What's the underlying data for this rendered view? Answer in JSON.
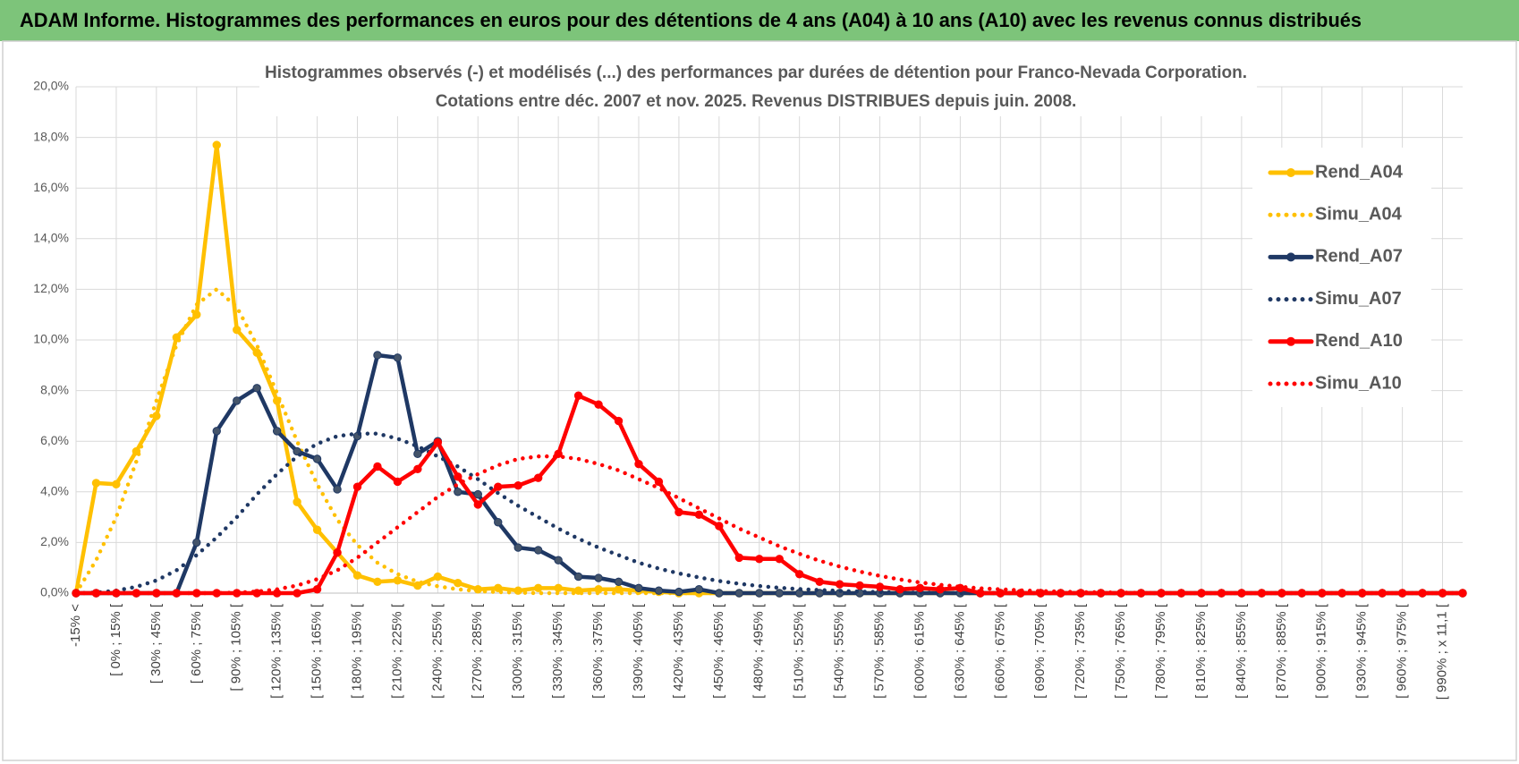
{
  "header": {
    "title": "ADAM Informe. Histogrammes des performances en euros pour des détentions de 4 ans (A04) à 10 ans (A10) avec les revenus connus distribués"
  },
  "chart_data": {
    "type": "line",
    "title": "Histogrammes observés (-) et modélisés (...) des performances par durées de détention pour Franco-Nevada Corporation.",
    "subtitle": "Cotations entre déc. 2007 et nov. 2025.  Revenus DISTRIBUES depuis juin. 2008.",
    "categories": [
      "-15% <",
      null,
      "[ 0% ; 15% [",
      null,
      "[ 30% ; 45% [",
      null,
      "[ 60% ; 75% [",
      null,
      "[ 90% ; 105% [",
      null,
      "[ 120% ; 135% [",
      null,
      "[ 150% ; 165% [",
      null,
      "[ 180% ; 195% [",
      null,
      "[ 210% ; 225% [",
      null,
      "[ 240% ; 255% [",
      null,
      "[ 270% ; 285% [",
      null,
      "[ 300% ; 315% [",
      null,
      "[ 330% ; 345% [",
      null,
      "[ 360% ; 375% [",
      null,
      "[ 390% ; 405% [",
      null,
      "[ 420% ; 435% [",
      null,
      "[ 450% ; 465% [",
      null,
      "[ 480% ; 495% [",
      null,
      "[ 510% ; 525% [",
      null,
      "[ 540% ; 555% [",
      null,
      "[ 570% ; 585% [",
      null,
      "[ 600% ; 615% [",
      null,
      "[ 630% ; 645% [",
      null,
      "[ 660% ; 675% [",
      null,
      "[ 690% ; 705% [",
      null,
      "[ 720% ; 735% [",
      null,
      "[ 750% ; 765% [",
      null,
      "[ 780% ; 795% [",
      null,
      "[ 810% ; 825% [",
      null,
      "[ 840% ; 855% [",
      null,
      "[ 870% ; 885% [",
      null,
      "[ 900% ; 915% [",
      null,
      "[ 930% ; 945% [",
      null,
      "[ 960% ; 975% [",
      null,
      "[ 990% ; x 11,1 [",
      null
    ],
    "series": [
      {
        "name": "Rend_A04",
        "color": "#FFC000",
        "line_style": "solid",
        "markers": true,
        "values": [
          0,
          4.35,
          4.3,
          5.6,
          7.0,
          10.1,
          11.0,
          17.7,
          10.4,
          9.5,
          7.6,
          3.6,
          2.5,
          1.6,
          0.7,
          0.45,
          0.5,
          0.3,
          0.65,
          0.4,
          0.15,
          0.2,
          0.1,
          0.2,
          0.2,
          0.1,
          0.15,
          0.15,
          0.1,
          0.05,
          0,
          0,
          0,
          0,
          0,
          0,
          0,
          0,
          0,
          0,
          0,
          0,
          0,
          0,
          0,
          0,
          0,
          0,
          0,
          0,
          0,
          0,
          0,
          0,
          0,
          0,
          0,
          0,
          0,
          0,
          0,
          0,
          0,
          0,
          0,
          0,
          0,
          0,
          0,
          0
        ]
      },
      {
        "name": "Simu_A04",
        "color": "#FFC000",
        "line_style": "dotted",
        "markers": false,
        "values": [
          0,
          1.3,
          3.0,
          5.2,
          7.6,
          9.8,
          11.4,
          12.0,
          11.3,
          9.8,
          7.9,
          6.0,
          4.3,
          2.9,
          1.9,
          1.2,
          0.75,
          0.45,
          0.27,
          0.15,
          0.08,
          0.04,
          0.02,
          0,
          0,
          0,
          0,
          0,
          0,
          0,
          0,
          0,
          0,
          0,
          0,
          0,
          0,
          0,
          0,
          0,
          0,
          0,
          0,
          0,
          0,
          0,
          0,
          0,
          0,
          0,
          0,
          0,
          0,
          0,
          0,
          0,
          0,
          0,
          0,
          0,
          0,
          0,
          0,
          0,
          0,
          0,
          0,
          0,
          0,
          0
        ]
      },
      {
        "name": "Rend_A07",
        "color": "#1F3864",
        "line_style": "solid",
        "markers": true,
        "values": [
          0,
          0,
          0,
          0,
          0,
          0,
          2.0,
          6.4,
          7.6,
          8.1,
          6.4,
          5.6,
          5.3,
          4.1,
          6.2,
          9.4,
          9.3,
          5.5,
          6.0,
          4.0,
          3.9,
          2.8,
          1.8,
          1.7,
          1.3,
          0.65,
          0.6,
          0.45,
          0.2,
          0.1,
          0.05,
          0.15,
          0,
          0,
          0,
          0,
          0,
          0,
          0,
          0,
          0,
          0,
          0,
          0,
          0,
          0,
          0,
          0,
          0,
          0,
          0,
          0,
          0,
          0,
          0,
          0,
          0,
          0,
          0,
          0,
          0,
          0,
          0,
          0,
          0,
          0,
          0,
          0,
          0,
          0
        ]
      },
      {
        "name": "Simu_A07",
        "color": "#1F3864",
        "line_style": "dotted",
        "markers": false,
        "values": [
          0,
          0.02,
          0.1,
          0.25,
          0.5,
          0.9,
          1.5,
          2.2,
          3.0,
          3.9,
          4.7,
          5.4,
          5.9,
          6.2,
          6.3,
          6.3,
          6.1,
          5.8,
          5.4,
          5.0,
          4.5,
          3.95,
          3.45,
          3.0,
          2.55,
          2.15,
          1.8,
          1.5,
          1.2,
          0.97,
          0.78,
          0.62,
          0.48,
          0.37,
          0.28,
          0.21,
          0.16,
          0.12,
          0.09,
          0.06,
          0.04,
          0.03,
          0.02,
          0.01,
          0,
          0,
          0,
          0,
          0,
          0,
          0,
          0,
          0,
          0,
          0,
          0,
          0,
          0,
          0,
          0,
          0,
          0,
          0,
          0,
          0,
          0,
          0,
          0,
          0,
          0
        ]
      },
      {
        "name": "Rend_A10",
        "color": "#FF0000",
        "line_style": "solid",
        "markers": true,
        "values": [
          0,
          0,
          0,
          0,
          0,
          0,
          0,
          0,
          0,
          0,
          0,
          0,
          0.15,
          1.6,
          4.2,
          5.0,
          4.4,
          4.9,
          5.95,
          4.6,
          3.5,
          4.2,
          4.25,
          4.55,
          5.5,
          7.8,
          7.45,
          6.8,
          5.1,
          4.4,
          3.2,
          3.1,
          2.65,
          1.4,
          1.35,
          1.35,
          0.75,
          0.45,
          0.35,
          0.3,
          0.25,
          0.15,
          0.2,
          0.15,
          0.2,
          0,
          0,
          0,
          0,
          0,
          0,
          0,
          0,
          0,
          0,
          0,
          0,
          0,
          0,
          0,
          0,
          0,
          0,
          0,
          0,
          0,
          0,
          0,
          0,
          0
        ]
      },
      {
        "name": "Simu_A10",
        "color": "#FF0000",
        "line_style": "dotted",
        "markers": false,
        "values": [
          0,
          0,
          0,
          0,
          0,
          0,
          0,
          0,
          0.02,
          0.06,
          0.15,
          0.3,
          0.55,
          0.9,
          1.4,
          2.0,
          2.6,
          3.2,
          3.8,
          4.3,
          4.7,
          5.05,
          5.3,
          5.4,
          5.4,
          5.3,
          5.1,
          4.85,
          4.5,
          4.15,
          3.75,
          3.35,
          2.95,
          2.55,
          2.2,
          1.85,
          1.55,
          1.28,
          1.05,
          0.85,
          0.68,
          0.54,
          0.42,
          0.33,
          0.25,
          0.19,
          0.15,
          0.11,
          0.08,
          0.06,
          0.04,
          0.03,
          0.02,
          0.01,
          0,
          0,
          0,
          0,
          0,
          0,
          0,
          0,
          0,
          0,
          0,
          0,
          0,
          0,
          0,
          0
        ]
      }
    ],
    "ylim": [
      0,
      20
    ],
    "yticks": [
      {
        "value": 0,
        "label": "0,0%"
      },
      {
        "value": 2,
        "label": "2,0%"
      },
      {
        "value": 4,
        "label": "4,0%"
      },
      {
        "value": 6,
        "label": "6,0%"
      },
      {
        "value": 8,
        "label": "8,0%"
      },
      {
        "value": 10,
        "label": "10,0%"
      },
      {
        "value": 12,
        "label": "12,0%"
      },
      {
        "value": 14,
        "label": "14,0%"
      },
      {
        "value": 16,
        "label": "16,0%"
      },
      {
        "value": 18,
        "label": "18,0%"
      },
      {
        "value": 20,
        "label": "20,0%"
      }
    ],
    "grid": true,
    "legend": "right"
  }
}
